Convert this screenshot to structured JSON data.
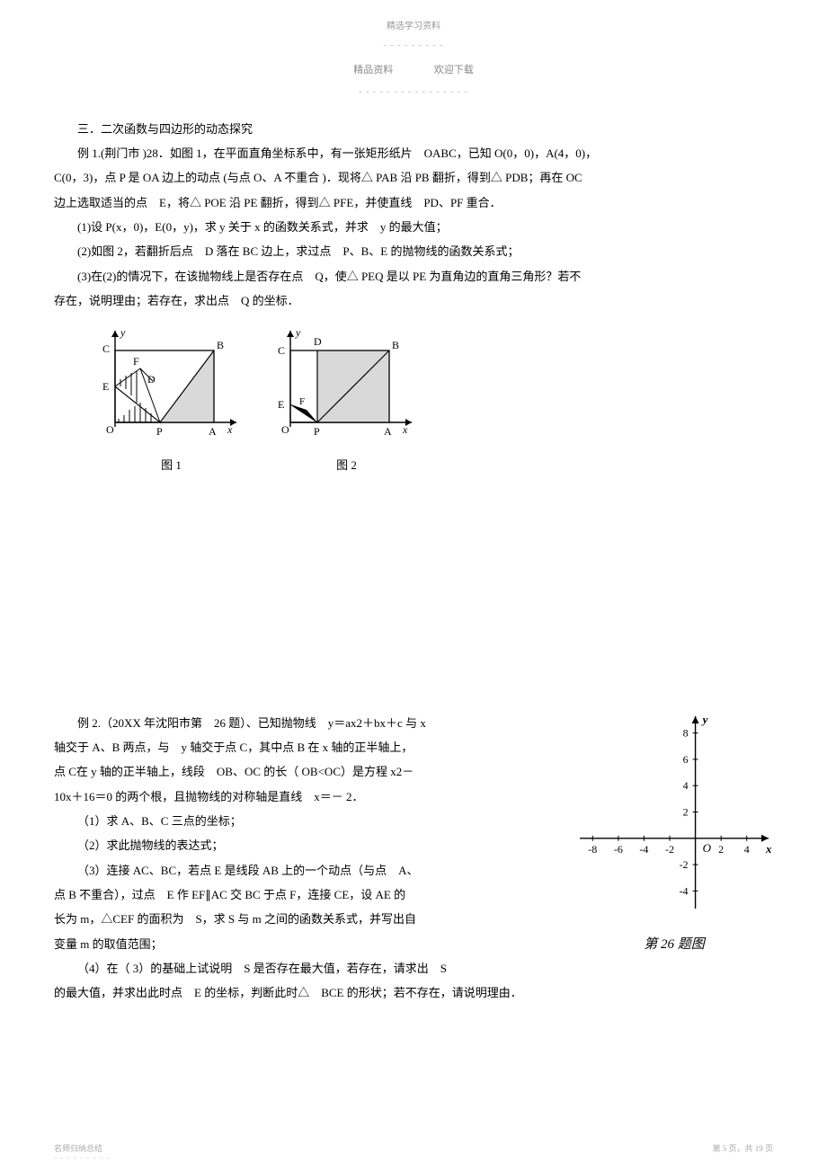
{
  "header": {
    "top_mark": "精选学习资料",
    "dashes": "- - - - - - - - -",
    "left_label": "精品资料",
    "right_label": "欢迎下载"
  },
  "section_title": "三．二次函数与四边形的动态探究",
  "example1": {
    "line1": "例 1.(荆门市 )28．如图 1，在平面直角坐标系中，有一张矩形纸片　OABC，已知 O(0，0)，A(4，0)，",
    "line2": "C(0，3)，点 P 是 OA 边上的动点 (与点 O、A 不重合 )．现将△ PAB 沿 PB 翻折，得到△ PDB；再在 OC",
    "line3": "边上选取适当的点　E，将△ POE 沿 PE 翻折，得到△ PFE，并使直线　PD、PF 重合．",
    "q1": "(1)设 P(x，0)，E(0，y)，求 y 关于 x 的函数关系式，并求　y 的最大值；",
    "q2": "(2)如图 2，若翻折后点　D 落在 BC 边上，求过点　P、B、E 的抛物线的函数关系式；",
    "q3a": "(3)在(2)的情况下，在该抛物线上是否存在点　Q，使△ PEQ 是以 PE 为直角边的直角三角形？若不",
    "q3b": "存在，说明理由；若存在，求出点　Q 的坐标．",
    "fig1_caption": "图 1",
    "fig2_caption": "图 2",
    "fig1": {
      "labels": {
        "O": "O",
        "P": "P",
        "A": "A",
        "B": "B",
        "C": "C",
        "D": "D",
        "E": "E",
        "F": "F",
        "x": "x",
        "y": "y"
      },
      "colors": {
        "stroke": "#000000",
        "fill_shade": "#d9d9d9",
        "bg": "#ffffff"
      }
    },
    "fig2": {
      "labels": {
        "O": "O",
        "P": "P",
        "A": "A",
        "B": "B",
        "C": "C",
        "D": "D",
        "E": "E",
        "F": "F",
        "x": "x",
        "y": "y"
      },
      "colors": {
        "stroke": "#000000",
        "fill_shade": "#d9d9d9",
        "fill_dark": "#000000",
        "bg": "#ffffff"
      }
    }
  },
  "example2": {
    "line1": "例 2.（20XX 年沈阳市第　26 题）、已知抛物线　y＝ax2＋bx＋c 与 x",
    "line2": "轴交于 A、B 两点，与　y 轴交于点 C，其中点 B 在 x 轴的正半轴上，",
    "line3": "点 C在 y 轴的正半轴上，线段　OB、OC 的长（ OB<OC）是方程 x2－",
    "line4": "10x＋16＝0 的两个根，且抛物线的对称轴是直线　x＝－ 2．",
    "q1": "（1）求 A、B、C 三点的坐标；",
    "q2": "（2）求此抛物线的表达式；",
    "q3a": "（3）连接 AC、BC，若点 E 是线段 AB 上的一个动点（与点　A、",
    "q3b": "点 B 不重合），过点　E 作 EF∥AC 交 BC 于点 F，连接 CE，设 AE 的",
    "q3c": "长为 m，△CEF 的面积为　S，求 S 与 m 之间的函数关系式，并写出自",
    "q3d": "变量 m 的取值范围；",
    "q4a": "（4）在（ 3）的基础上试说明　S 是否存在最大值，若存在，请求出　S",
    "q4b": "的最大值，并求出此时点　E 的坐标，判断此时△　BCE 的形状；若不存在，请说明理由．",
    "chart_caption": "第 26 题图",
    "chart": {
      "type": "coordinate-plane",
      "x_ticks": [
        -8,
        -6,
        -4,
        -2,
        2,
        4
      ],
      "y_ticks": [
        -4,
        -2,
        2,
        4,
        6,
        8
      ],
      "xlim": [
        -9,
        5
      ],
      "ylim": [
        -5,
        9
      ],
      "axis_color": "#000000",
      "tick_fontsize": 12,
      "origin_label": "O",
      "x_label": "x",
      "y_label": "y",
      "background_color": "#ffffff"
    }
  },
  "footer": {
    "left": "名师归纳总结",
    "right": "第 5 页，共 19 页",
    "dashes": "- - - - - - - - -"
  }
}
